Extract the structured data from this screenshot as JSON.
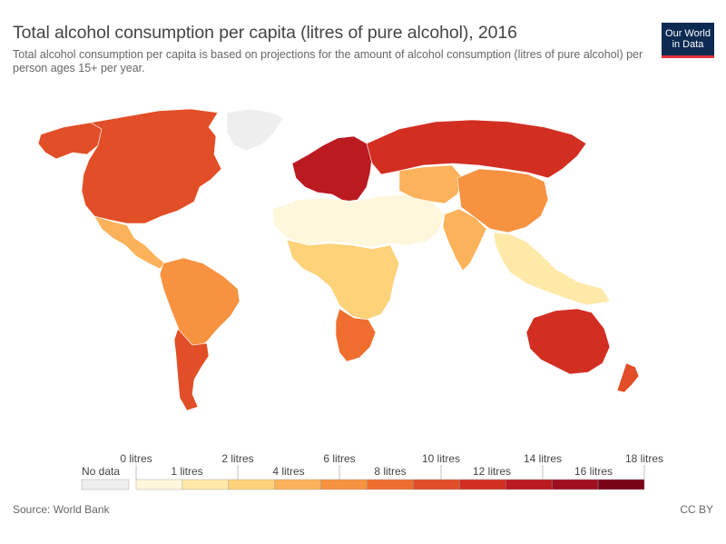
{
  "header": {
    "title": "Total alcohol consumption per capita (litres of pure alcohol), 2016",
    "subtitle": "Total alcohol consumption per capita is based on projections for the amount of alcohol consumption (litres of pure alcohol) per person ages 15+ per year.",
    "logo_line1": "Our World",
    "logo_line2": "in Data"
  },
  "legend": {
    "no_data_label": "No data",
    "no_data_color": "#eeeeee",
    "upper_labels": [
      "0 litres",
      "2 litres",
      "6 litres",
      "10 litres",
      "14 litres",
      "18 litres"
    ],
    "lower_labels": [
      "1 litres",
      "4 litres",
      "8 litres",
      "12 litres",
      "16 litres"
    ],
    "colors": [
      "#fff7dc",
      "#fee9a8",
      "#fdd279",
      "#fbb25a",
      "#f69240",
      "#ef6e2f",
      "#e24e27",
      "#d22f22",
      "#bb1a21",
      "#9e0f1f",
      "#7a0519"
    ]
  },
  "map": {
    "regions": [
      {
        "name": "north-america",
        "color": "#e24e27"
      },
      {
        "name": "greenland",
        "color": "#eeeeee"
      },
      {
        "name": "alaska",
        "color": "#e24e27"
      },
      {
        "name": "central-america",
        "color": "#fbb25a"
      },
      {
        "name": "south-america",
        "color": "#f69240"
      },
      {
        "name": "argentina-chile",
        "color": "#e24e27"
      },
      {
        "name": "europe",
        "color": "#bb1a21"
      },
      {
        "name": "russia",
        "color": "#d22f22"
      },
      {
        "name": "north-africa-middle-east",
        "color": "#fff7dc"
      },
      {
        "name": "sub-saharan-africa",
        "color": "#fdd279"
      },
      {
        "name": "southern-africa",
        "color": "#ef6e2f"
      },
      {
        "name": "central-asia",
        "color": "#fbb25a"
      },
      {
        "name": "china",
        "color": "#f69240"
      },
      {
        "name": "india",
        "color": "#fbb25a"
      },
      {
        "name": "southeast-asia",
        "color": "#fee9a8"
      },
      {
        "name": "australia",
        "color": "#d22f22"
      },
      {
        "name": "new-zealand",
        "color": "#e24e27"
      }
    ]
  },
  "footer": {
    "source": "Source: World Bank",
    "license": "CC BY"
  }
}
